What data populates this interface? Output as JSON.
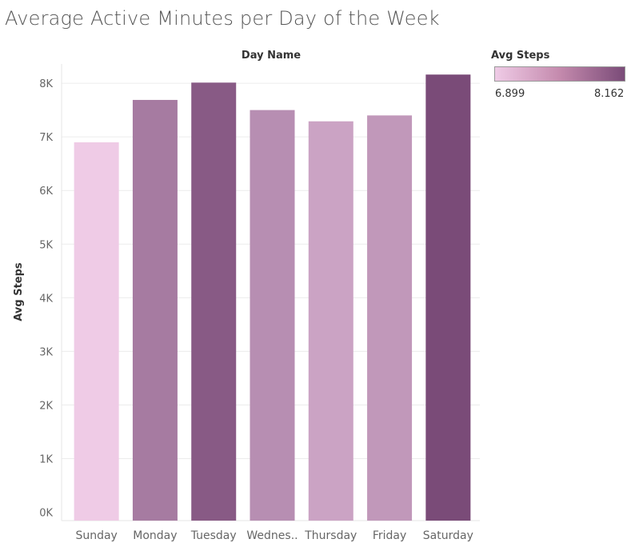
{
  "chart_data": {
    "type": "bar",
    "title": "Average Active Minutes per Day of the Week",
    "xlabel": "Day Name",
    "ylabel": "Avg Steps",
    "categories": [
      "Sunday",
      "Monday",
      "Tuesday",
      "Wednes..",
      "Thursday",
      "Friday",
      "Saturday"
    ],
    "values": [
      6899,
      7689,
      8012,
      7500,
      7290,
      7400,
      8162
    ],
    "ylim": [
      0,
      8500
    ],
    "yticks": [
      0,
      1000,
      2000,
      3000,
      4000,
      5000,
      6000,
      7000,
      8000
    ],
    "ytick_labels": [
      "0K",
      "1K",
      "2K",
      "3K",
      "4K",
      "5K",
      "6K",
      "7K",
      "8K"
    ],
    "grid": true,
    "legend": {
      "title": "Avg Steps",
      "min_label": "6.899",
      "max_label": "8.162",
      "min_value": 6899,
      "max_value": 8162,
      "color_low": "#efcbe6",
      "color_high": "#7a4b78"
    }
  }
}
